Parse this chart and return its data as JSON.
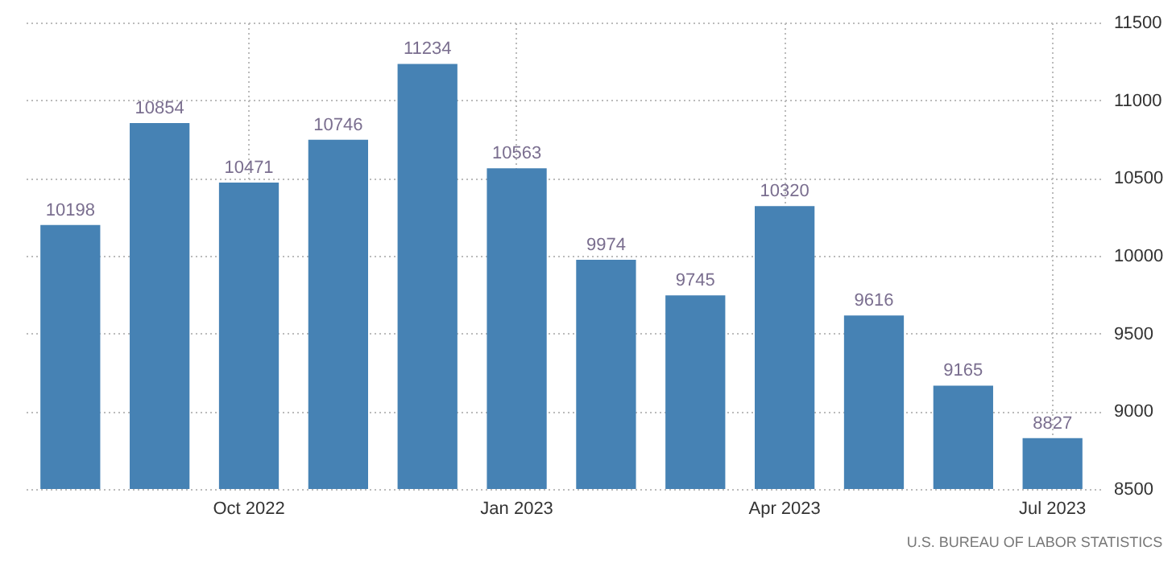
{
  "chart_data": {
    "type": "bar",
    "categories": [
      null,
      null,
      "Oct 2022",
      null,
      null,
      "Jan 2023",
      null,
      null,
      "Apr 2023",
      null,
      null,
      "Jul 2023"
    ],
    "values": [
      10198,
      10854,
      10471,
      10746,
      11234,
      10563,
      9974,
      9745,
      10320,
      9616,
      9165,
      8827
    ],
    "color": "#4682b4",
    "ylim": [
      8500,
      11500
    ],
    "yticks": [
      8500,
      9000,
      9500,
      10000,
      10500,
      11000,
      11500
    ],
    "grid": true,
    "data_labels": true,
    "annotations": [
      "U.S. BUREAU OF LABOR STATISTICS"
    ]
  }
}
